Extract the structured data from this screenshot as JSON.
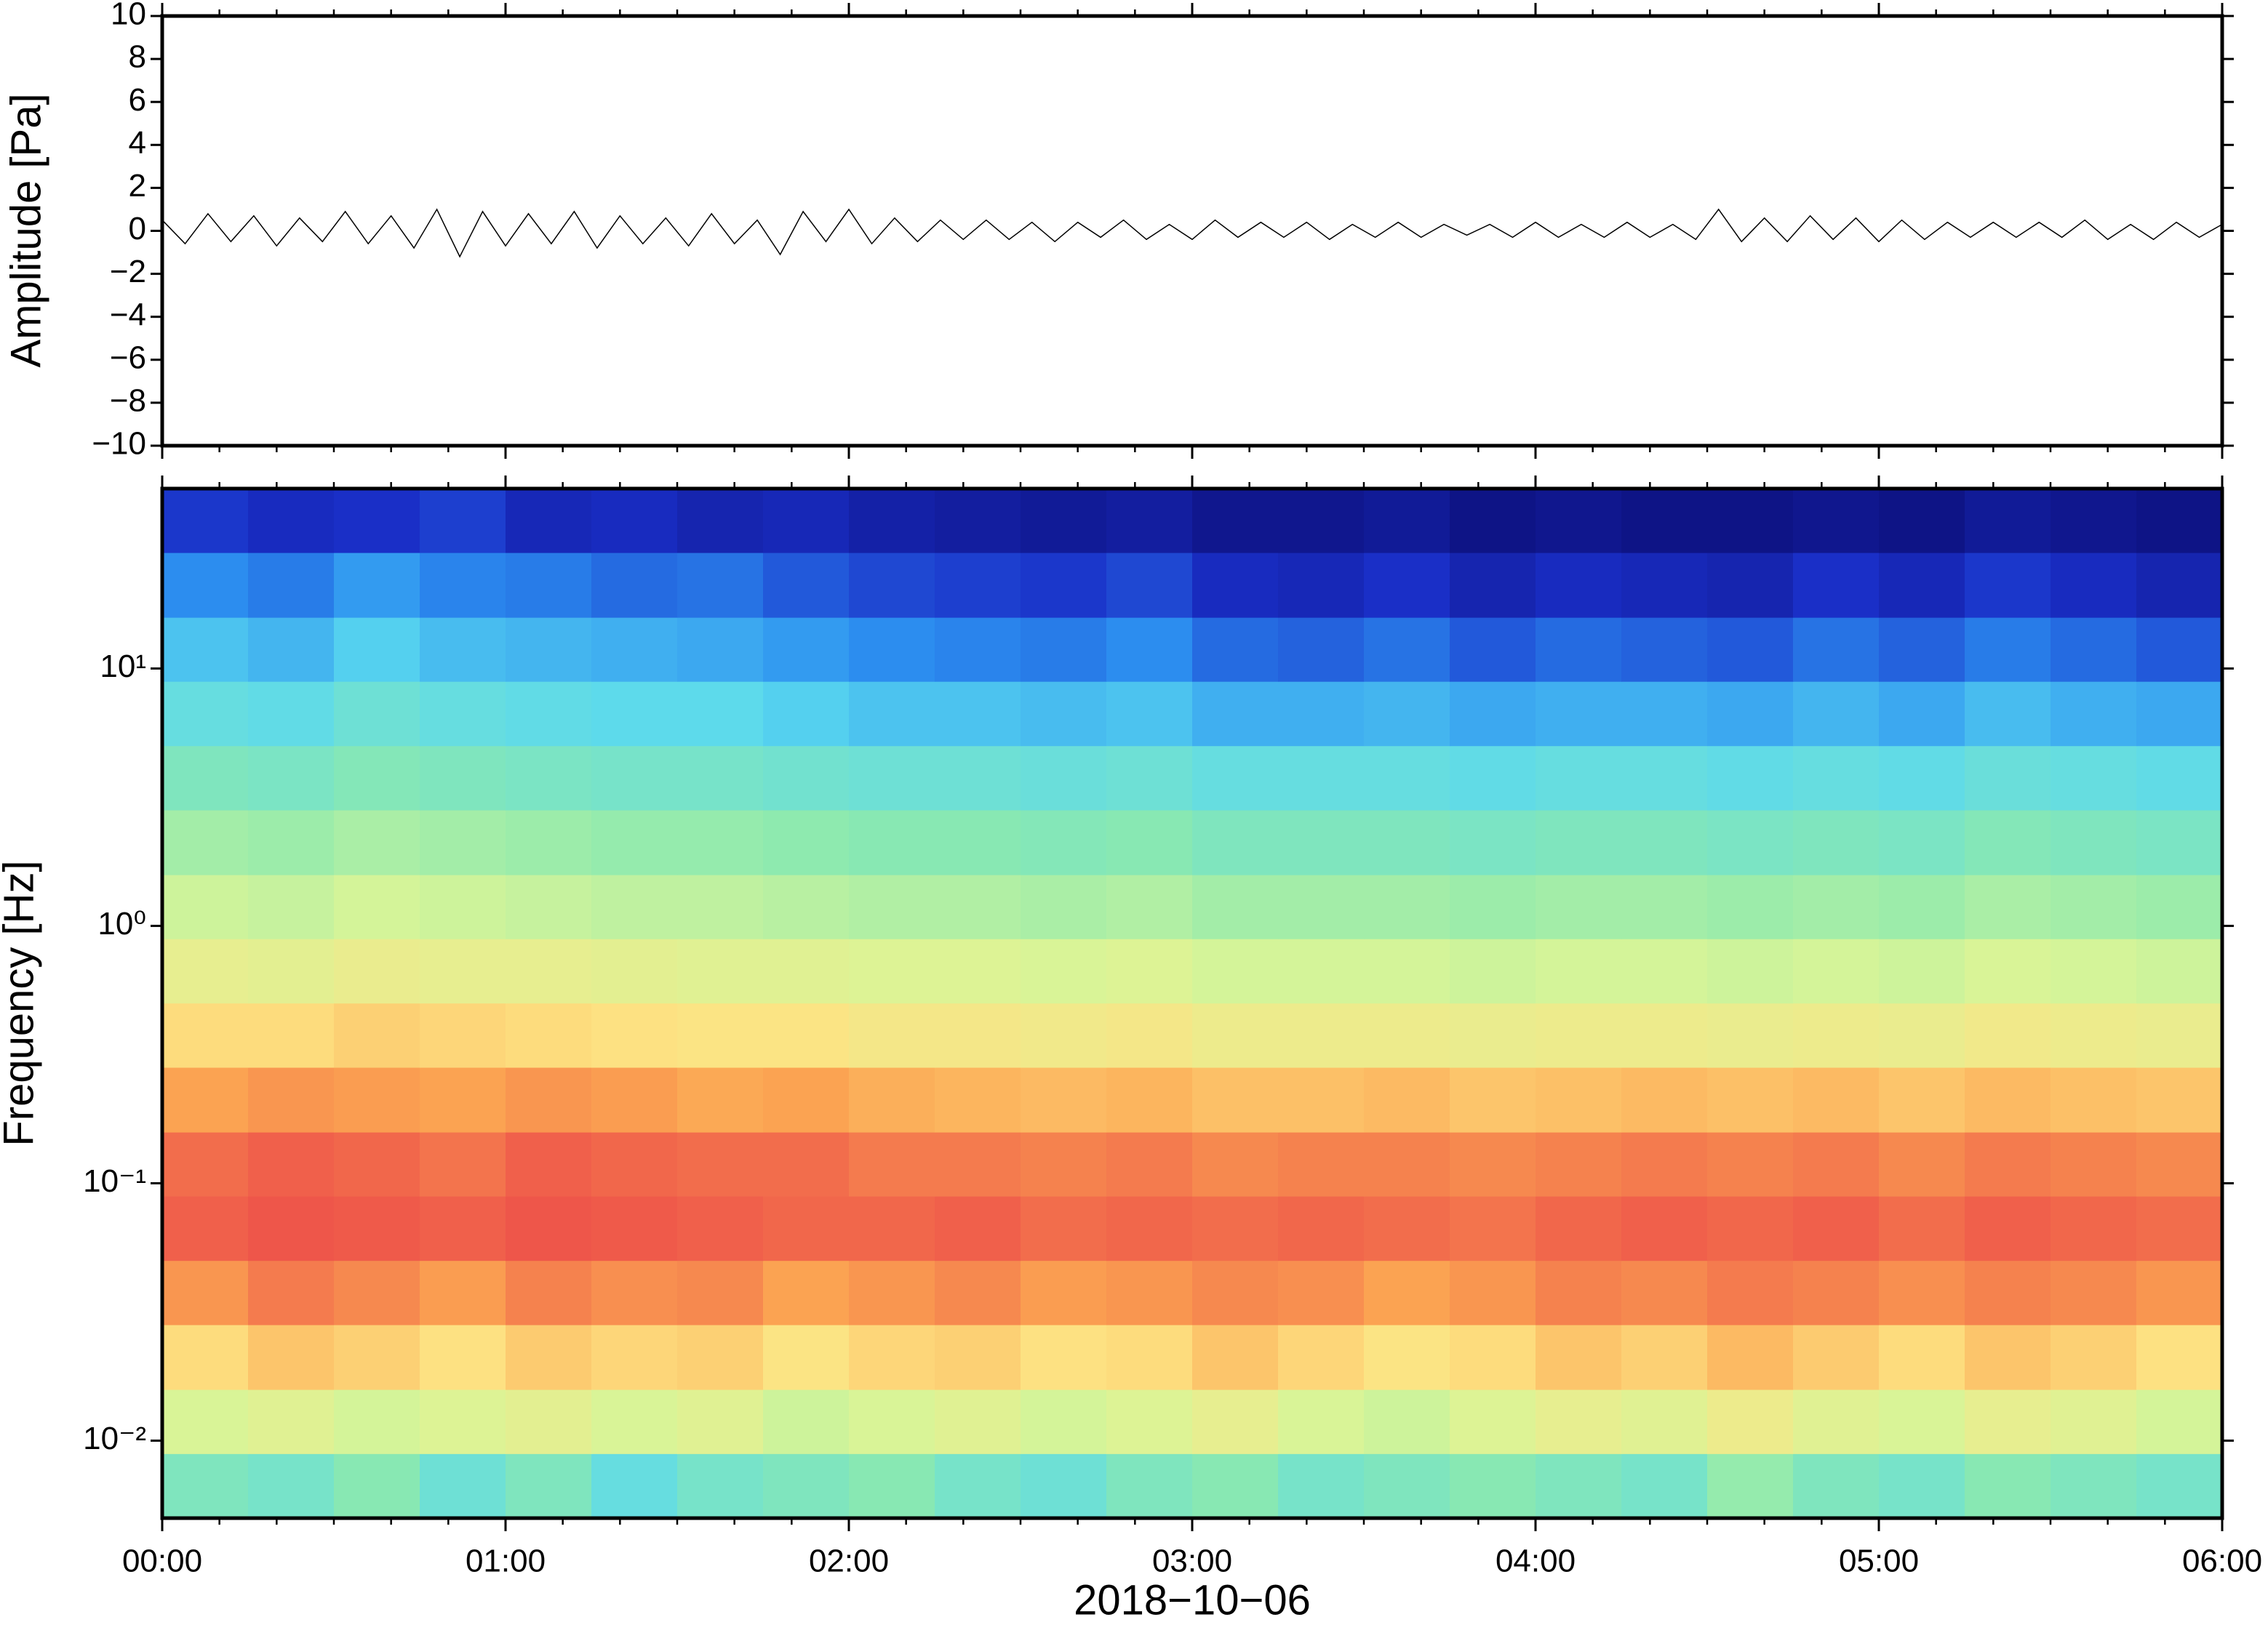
{
  "chart_data": [
    {
      "type": "line",
      "ylabel": "Amplitude [Pa]",
      "color": "#000000",
      "xlim": [
        0,
        360
      ],
      "ylim": [
        -10,
        10
      ],
      "yticks": [
        {
          "value": -10,
          "label": "−10"
        },
        {
          "value": -8,
          "label": "−8"
        },
        {
          "value": -6,
          "label": "−6"
        },
        {
          "value": -4,
          "label": "−4"
        },
        {
          "value": -2,
          "label": "−2"
        },
        0,
        2,
        4,
        6,
        8,
        10
      ],
      "x": [
        0,
        4,
        8,
        12,
        16,
        20,
        24,
        28,
        32,
        36,
        40,
        44,
        48,
        52,
        56,
        60,
        64,
        68,
        72,
        76,
        80,
        84,
        88,
        92,
        96,
        100,
        104,
        108,
        112,
        116,
        120,
        124,
        128,
        132,
        136,
        140,
        144,
        148,
        152,
        156,
        160,
        164,
        168,
        172,
        176,
        180,
        184,
        188,
        192,
        196,
        200,
        204,
        208,
        212,
        216,
        220,
        224,
        228,
        232,
        236,
        240,
        244,
        248,
        252,
        256,
        260,
        264,
        268,
        272,
        276,
        280,
        284,
        288,
        292,
        296,
        300,
        304,
        308,
        312,
        316,
        320,
        324,
        328,
        332,
        336,
        340,
        344,
        348,
        352,
        356,
        360
      ],
      "values": [
        0.5,
        -0.6,
        0.8,
        -0.5,
        0.7,
        -0.7,
        0.6,
        -0.5,
        0.9,
        -0.6,
        0.7,
        -0.8,
        1.0,
        -1.2,
        0.9,
        -0.7,
        0.8,
        -0.6,
        0.9,
        -0.8,
        0.7,
        -0.6,
        0.6,
        -0.7,
        0.8,
        -0.6,
        0.5,
        -1.1,
        0.9,
        -0.5,
        1.0,
        -0.6,
        0.6,
        -0.5,
        0.5,
        -0.4,
        0.5,
        -0.4,
        0.4,
        -0.5,
        0.4,
        -0.3,
        0.5,
        -0.4,
        0.3,
        -0.4,
        0.5,
        -0.3,
        0.4,
        -0.3,
        0.4,
        -0.4,
        0.3,
        -0.3,
        0.4,
        -0.3,
        0.3,
        -0.2,
        0.3,
        -0.3,
        0.4,
        -0.3,
        0.3,
        -0.3,
        0.4,
        -0.3,
        0.3,
        -0.4,
        1.0,
        -0.5,
        0.6,
        -0.5,
        0.7,
        -0.4,
        0.6,
        -0.5,
        0.5,
        -0.4,
        0.4,
        -0.3,
        0.4,
        -0.3,
        0.4,
        -0.3,
        0.5,
        -0.4,
        0.3,
        -0.4,
        0.4,
        -0.3,
        0.3
      ]
    },
    {
      "type": "heatmap",
      "xlabel": "2018−10−06",
      "ylabel": "Frequency [Hz]",
      "xlim": [
        0,
        360
      ],
      "xticks": [
        {
          "value": 0,
          "label": "00:00"
        },
        {
          "value": 60,
          "label": "01:00"
        },
        {
          "value": 120,
          "label": "02:00"
        },
        {
          "value": 180,
          "label": "03:00"
        },
        {
          "value": 240,
          "label": "04:00"
        },
        {
          "value": 300,
          "label": "05:00"
        },
        {
          "value": 360,
          "label": "06:00"
        }
      ],
      "xminorticks": [
        0,
        10,
        20,
        30,
        40,
        50,
        60,
        70,
        80,
        90,
        100,
        110,
        120,
        130,
        140,
        150,
        160,
        170,
        180,
        190,
        200,
        210,
        220,
        230,
        240,
        250,
        260,
        270,
        280,
        290,
        300,
        310,
        320,
        330,
        340,
        350,
        360
      ],
      "ylim": [
        0.005,
        50
      ],
      "yscale": "log",
      "yticks": [
        {
          "value": 0.01,
          "label": "10⁻²"
        },
        {
          "value": 0.1,
          "label": "10⁻¹"
        },
        {
          "value": 1,
          "label": "10⁰"
        },
        {
          "value": 10,
          "label": "10¹"
        }
      ],
      "xbins": [
        0,
        15,
        30,
        45,
        60,
        75,
        90,
        105,
        120,
        135,
        150,
        165,
        180,
        195,
        210,
        225,
        240,
        255,
        270,
        285,
        300,
        315,
        330,
        345,
        360
      ],
      "ybins": [
        0.005,
        0.0089,
        0.0158,
        0.0282,
        0.0501,
        0.0891,
        0.158,
        0.282,
        0.501,
        0.891,
        1.58,
        2.82,
        5.01,
        8.91,
        15.8,
        28.2,
        50
      ],
      "zlim": [
        0,
        100
      ],
      "colormap": [
        "#0a0a6e",
        "#1a2fc8",
        "#2c8ff0",
        "#5ad9ef",
        "#8ae9b0",
        "#d8f598",
        "#fde383",
        "#fba552",
        "#ef5a4a",
        "#e8334a"
      ],
      "z": [
        [
          42,
          40,
          44,
          38,
          42,
          36,
          40,
          42,
          44,
          40,
          38,
          42,
          44,
          40,
          42,
          44,
          42,
          40,
          46,
          42,
          40,
          44,
          42,
          40
        ],
        [
          56,
          58,
          55,
          57,
          59,
          56,
          58,
          54,
          56,
          58,
          55,
          57,
          60,
          56,
          54,
          57,
          60,
          58,
          62,
          58,
          56,
          60,
          58,
          55
        ],
        [
          68,
          72,
          70,
          67,
          71,
          69,
          70,
          66,
          69,
          70,
          67,
          68,
          72,
          69,
          66,
          68,
          72,
          70,
          74,
          71,
          68,
          72,
          70,
          67
        ],
        [
          80,
          84,
          82,
          79,
          83,
          81,
          82,
          78,
          80,
          82,
          79,
          80,
          82,
          81,
          78,
          80,
          83,
          82,
          84,
          83,
          81,
          83,
          82,
          80
        ],
        [
          88,
          90,
          89,
          88,
          90,
          89,
          88,
          87,
          87,
          88,
          86,
          87,
          86,
          87,
          86,
          85,
          87,
          88,
          87,
          88,
          86,
          88,
          87,
          86
        ],
        [
          86,
          88,
          87,
          85,
          88,
          87,
          86,
          86,
          84,
          84,
          83,
          84,
          82,
          83,
          83,
          82,
          83,
          84,
          83,
          84,
          82,
          84,
          83,
          82
        ],
        [
          78,
          80,
          79,
          78,
          80,
          79,
          77,
          78,
          76,
          75,
          74,
          75,
          73,
          73,
          74,
          72,
          73,
          74,
          73,
          74,
          72,
          74,
          73,
          72
        ],
        [
          68,
          68,
          70,
          69,
          68,
          67,
          66,
          66,
          64,
          64,
          63,
          64,
          62,
          62,
          62,
          61,
          62,
          62,
          61,
          62,
          61,
          63,
          62,
          61
        ],
        [
          60,
          59,
          61,
          60,
          60,
          59,
          58,
          58,
          57,
          57,
          56,
          57,
          55,
          55,
          55,
          54,
          55,
          55,
          54,
          55,
          54,
          56,
          55,
          54
        ],
        [
          54,
          53,
          55,
          54,
          53,
          52,
          52,
          51,
          50,
          50,
          49,
          50,
          48,
          48,
          48,
          47,
          48,
          48,
          47,
          48,
          47,
          49,
          48,
          47
        ],
        [
          48,
          47,
          49,
          48,
          47,
          46,
          46,
          45,
          44,
          44,
          43,
          44,
          42,
          42,
          42,
          41,
          42,
          42,
          41,
          42,
          41,
          43,
          42,
          41
        ],
        [
          42,
          41,
          43,
          42,
          41,
          40,
          40,
          39,
          38,
          38,
          37,
          38,
          36,
          36,
          36,
          35,
          36,
          36,
          35,
          36,
          35,
          37,
          36,
          35
        ],
        [
          36,
          35,
          38,
          36,
          35,
          34,
          34,
          32,
          30,
          30,
          29,
          30,
          27,
          27,
          28,
          26,
          27,
          27,
          26,
          28,
          26,
          29,
          27,
          26
        ],
        [
          30,
          28,
          32,
          29,
          28,
          27,
          26,
          24,
          22,
          21,
          20,
          22,
          18,
          17,
          19,
          16,
          18,
          17,
          16,
          19,
          17,
          20,
          18,
          16
        ],
        [
          22,
          20,
          24,
          21,
          20,
          18,
          19,
          16,
          14,
          13,
          12,
          14,
          10,
          9,
          11,
          8,
          10,
          9,
          8,
          11,
          9,
          12,
          10,
          8
        ],
        [
          12,
          10,
          11,
          13,
          9,
          10,
          8,
          9,
          7,
          6,
          5,
          6,
          4,
          4,
          5,
          3,
          4,
          3,
          3,
          4,
          3,
          5,
          4,
          3
        ]
      ]
    }
  ]
}
